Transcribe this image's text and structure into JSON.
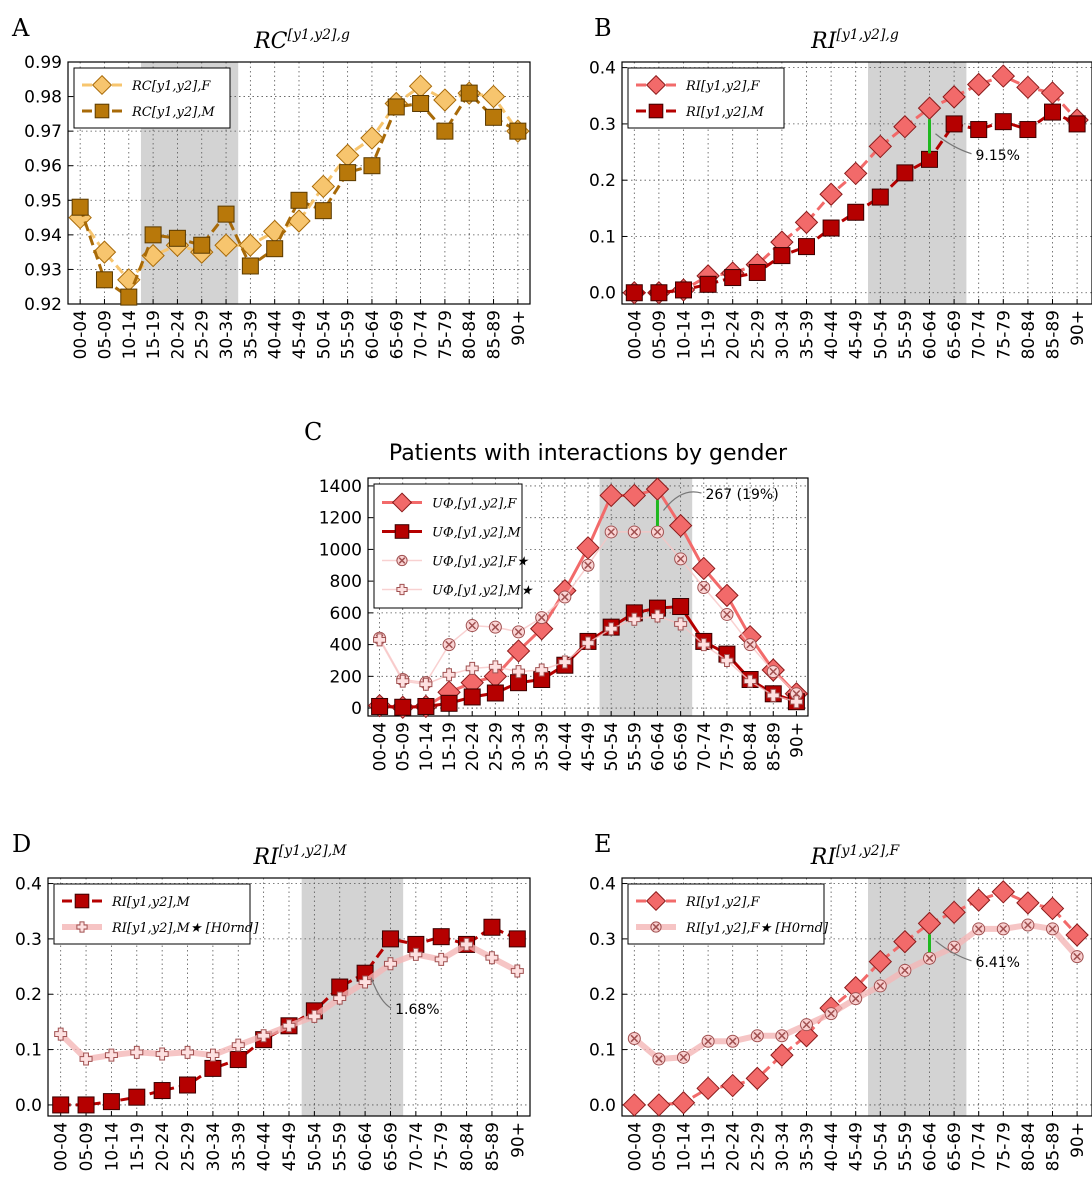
{
  "figure": {
    "colors": {
      "rc_f_fill": "#f7c56e",
      "rc_m_fill": "#b8780a",
      "rc_f_line": "#f7c56e",
      "rc_m_line": "#a86a08",
      "ri_f": "#f26a6a",
      "ri_m": "#b50000",
      "null_f": "#f4b6b6",
      "null_m": "#f4b6b6",
      "shade": "#d3d3d3",
      "diff": "#1fb81f"
    }
  },
  "chart_data": [
    {
      "panel": "A",
      "type": "line",
      "title": "RC^[y1,y2],g",
      "categories": [
        "00-04",
        "05-09",
        "10-14",
        "15-19",
        "20-24",
        "25-29",
        "30-34",
        "35-39",
        "40-44",
        "45-49",
        "50-54",
        "55-59",
        "60-64",
        "65-69",
        "70-74",
        "75-79",
        "80-84",
        "85-89",
        "90+"
      ],
      "ylim": [
        0.92,
        0.99
      ],
      "yticks": [
        "0.92",
        "0.93",
        "0.94",
        "0.95",
        "0.96",
        "0.97",
        "0.98",
        "0.99"
      ],
      "shade": [
        "15-19",
        "30-34"
      ],
      "legend": [
        "RC[y1,y2],F",
        "RC[y1,y2],M"
      ],
      "series": [
        {
          "name": "RC[y1,y2],F",
          "values": [
            0.945,
            0.935,
            0.927,
            0.934,
            0.937,
            0.935,
            0.937,
            0.937,
            0.941,
            0.944,
            0.954,
            0.963,
            0.968,
            0.978,
            0.983,
            0.979,
            0.981,
            0.98,
            0.97
          ]
        },
        {
          "name": "RC[y1,y2],M",
          "values": [
            0.948,
            0.927,
            0.922,
            0.94,
            0.939,
            0.937,
            0.946,
            0.931,
            0.936,
            0.95,
            0.947,
            0.958,
            0.96,
            0.977,
            0.978,
            0.97,
            0.981,
            0.974,
            0.97
          ]
        }
      ]
    },
    {
      "panel": "B",
      "type": "line",
      "title": "RI^[y1,y2],g",
      "categories": [
        "00-04",
        "05-09",
        "10-14",
        "15-19",
        "20-24",
        "25-29",
        "30-34",
        "35-39",
        "40-44",
        "45-49",
        "50-54",
        "55-59",
        "60-64",
        "65-69",
        "70-74",
        "75-79",
        "80-84",
        "85-89",
        "90+"
      ],
      "ylim": [
        -0.02,
        0.41
      ],
      "yticks": [
        "0.0",
        "0.1",
        "0.2",
        "0.3",
        "0.4"
      ],
      "shade": [
        "50-54",
        "65-69"
      ],
      "annotation": "9.15%",
      "legend": [
        "RI[y1,y2],F",
        "RI[y1,y2],M"
      ],
      "series": [
        {
          "name": "RI[y1,y2],F",
          "values": [
            0.0,
            0.0,
            0.005,
            0.03,
            0.035,
            0.05,
            0.09,
            0.125,
            0.175,
            0.212,
            0.26,
            0.295,
            0.328,
            0.348,
            0.37,
            0.385,
            0.365,
            0.355,
            0.307
          ]
        },
        {
          "name": "RI[y1,y2],M",
          "values": [
            0.0,
            0.0,
            0.005,
            0.015,
            0.027,
            0.036,
            0.066,
            0.082,
            0.115,
            0.143,
            0.17,
            0.213,
            0.237,
            0.3,
            0.29,
            0.304,
            0.29,
            0.321,
            0.3
          ]
        }
      ]
    },
    {
      "panel": "C",
      "type": "line",
      "title": "Patients with interactions by gender",
      "categories": [
        "00-04",
        "05-09",
        "10-14",
        "15-19",
        "20-24",
        "25-29",
        "30-34",
        "35-39",
        "40-44",
        "45-49",
        "50-54",
        "55-59",
        "60-64",
        "65-69",
        "70-74",
        "75-79",
        "80-84",
        "85-89",
        "90+"
      ],
      "ylim": [
        -50,
        1450
      ],
      "yticks": [
        "0",
        "200",
        "400",
        "600",
        "800",
        "1000",
        "1200",
        "1400"
      ],
      "shade": [
        "50-54",
        "65-69"
      ],
      "annotation": "267 (19%)",
      "legend": [
        "UΦ,[y1,y2],F",
        "UΦ,[y1,y2],M",
        "UΦ,[y1,y2],F★",
        "UΦ,[y1,y2],M★"
      ],
      "series": [
        {
          "name": "UΦ,[y1,y2],F",
          "values": [
            15,
            5,
            10,
            100,
            160,
            200,
            360,
            500,
            740,
            1010,
            1340,
            1340,
            1380,
            1150,
            880,
            710,
            450,
            240,
            90
          ]
        },
        {
          "name": "UΦ,[y1,y2],M",
          "values": [
            10,
            5,
            10,
            30,
            70,
            95,
            160,
            180,
            270,
            420,
            510,
            600,
            630,
            640,
            420,
            340,
            180,
            90,
            40
          ]
        },
        {
          "name": "UΦ,[y1,y2],F★",
          "values": [
            440,
            180,
            160,
            400,
            520,
            510,
            480,
            570,
            700,
            900,
            1110,
            1110,
            1110,
            940,
            760,
            590,
            400,
            230,
            90
          ]
        },
        {
          "name": "UΦ,[y1,y2],M★",
          "values": [
            430,
            170,
            150,
            210,
            250,
            260,
            230,
            240,
            290,
            410,
            500,
            560,
            580,
            530,
            400,
            300,
            170,
            80,
            40
          ]
        }
      ]
    },
    {
      "panel": "D",
      "type": "line",
      "title": "RI^[y1,y2],M",
      "categories": [
        "00-04",
        "05-09",
        "10-14",
        "15-19",
        "20-24",
        "25-29",
        "30-34",
        "35-39",
        "40-44",
        "45-49",
        "50-54",
        "55-59",
        "60-64",
        "65-69",
        "70-74",
        "75-79",
        "80-84",
        "85-89",
        "90+"
      ],
      "ylim": [
        -0.02,
        0.41
      ],
      "yticks": [
        "0.0",
        "0.1",
        "0.2",
        "0.3",
        "0.4"
      ],
      "shade": [
        "50-54",
        "65-69"
      ],
      "annotation": "1.68%",
      "legend": [
        "RI[y1,y2],M",
        "RI[y1,y2],M★ [H0rnd]"
      ],
      "series": [
        {
          "name": "RI[y1,y2],M",
          "values": [
            0.0,
            0.0,
            0.006,
            0.014,
            0.026,
            0.036,
            0.066,
            0.082,
            0.118,
            0.143,
            0.17,
            0.213,
            0.238,
            0.3,
            0.29,
            0.304,
            0.29,
            0.321,
            0.3
          ]
        },
        {
          "name": "RI[y1,y2],M★ [H0rnd]",
          "values": [
            0.128,
            0.083,
            0.09,
            0.095,
            0.092,
            0.095,
            0.09,
            0.108,
            0.125,
            0.143,
            0.16,
            0.193,
            0.222,
            0.255,
            0.272,
            0.263,
            0.29,
            0.266,
            0.242
          ]
        }
      ]
    },
    {
      "panel": "E",
      "type": "line",
      "title": "RI^[y1,y2],F",
      "categories": [
        "00-04",
        "05-09",
        "10-14",
        "15-19",
        "20-24",
        "25-29",
        "30-34",
        "35-39",
        "40-44",
        "45-49",
        "50-54",
        "55-59",
        "60-64",
        "65-69",
        "70-74",
        "75-79",
        "80-84",
        "85-89",
        "90+"
      ],
      "ylim": [
        -0.02,
        0.41
      ],
      "yticks": [
        "0.0",
        "0.1",
        "0.2",
        "0.3",
        "0.4"
      ],
      "shade": [
        "50-54",
        "65-69"
      ],
      "annotation": "6.41%",
      "legend": [
        "RI[y1,y2],F",
        "RI[y1,y2],F★ [H0rnd]"
      ],
      "series": [
        {
          "name": "RI[y1,y2],F",
          "values": [
            0.0,
            0.0,
            0.004,
            0.03,
            0.035,
            0.048,
            0.09,
            0.125,
            0.175,
            0.212,
            0.259,
            0.295,
            0.328,
            0.348,
            0.37,
            0.385,
            0.365,
            0.355,
            0.307
          ]
        },
        {
          "name": "RI[y1,y2],F★ [H0rnd]",
          "values": [
            0.12,
            0.083,
            0.086,
            0.115,
            0.115,
            0.125,
            0.125,
            0.145,
            0.165,
            0.192,
            0.215,
            0.243,
            0.265,
            0.285,
            0.318,
            0.318,
            0.325,
            0.318,
            0.268
          ]
        }
      ]
    }
  ]
}
